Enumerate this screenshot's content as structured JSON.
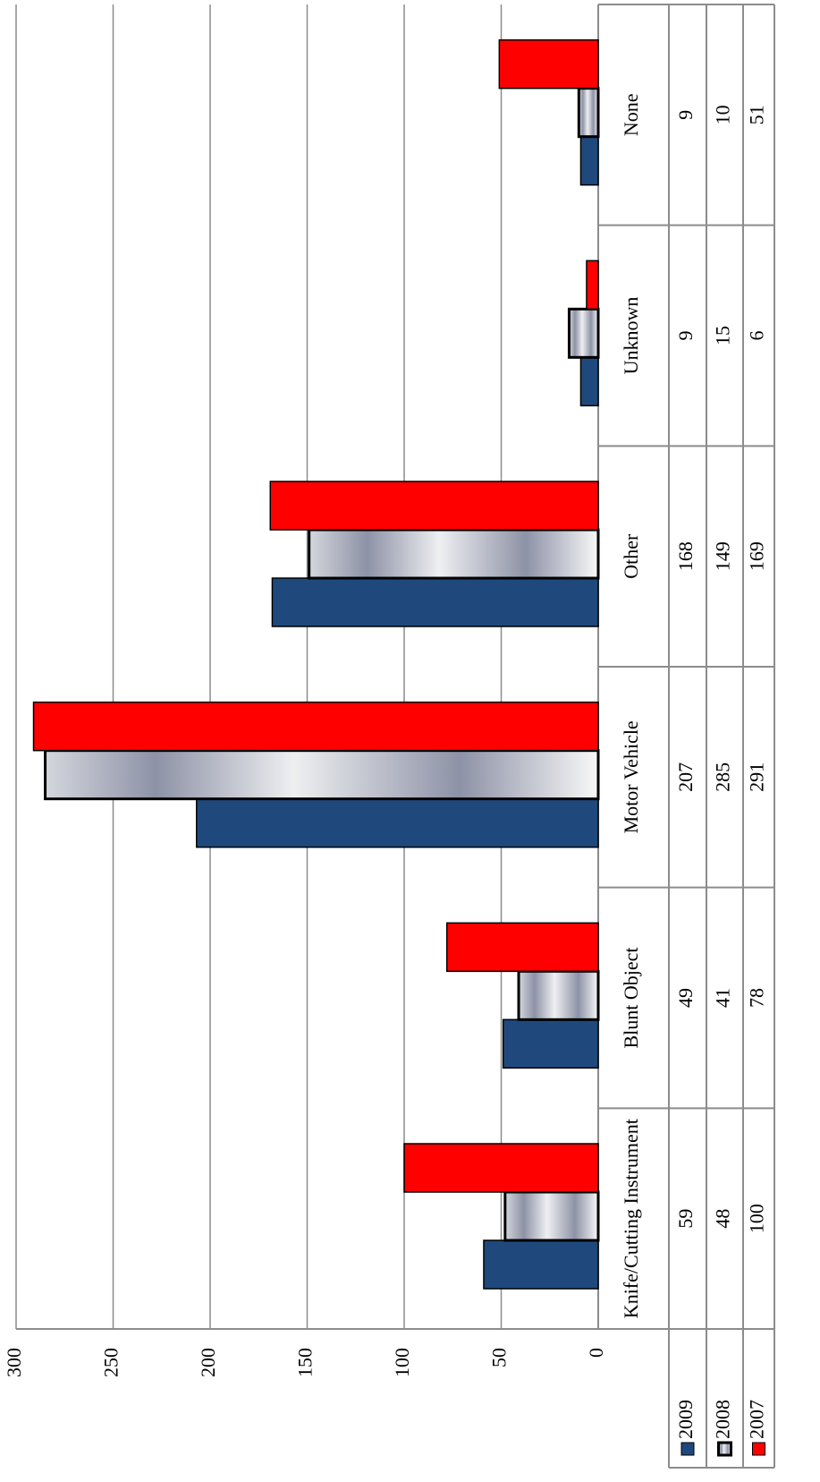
{
  "chart_data": {
    "type": "bar",
    "categories": [
      "Knife/Cutting Instrument",
      "Blunt Object",
      "Motor Vehicle",
      "Other",
      "Unknown",
      "None"
    ],
    "series": [
      {
        "name": "2009",
        "color": "#1f497d",
        "values": [
          59,
          49,
          207,
          168,
          9,
          9
        ]
      },
      {
        "name": "2008",
        "color": "gradient",
        "values": [
          48,
          41,
          285,
          149,
          15,
          10
        ]
      },
      {
        "name": "2007",
        "color": "#ff0000",
        "values": [
          100,
          78,
          291,
          169,
          6,
          51
        ]
      }
    ],
    "ylim": [
      0,
      300
    ],
    "yticks": [
      0,
      50,
      100,
      150,
      200,
      250,
      300
    ],
    "grid": true,
    "data_table": true
  }
}
